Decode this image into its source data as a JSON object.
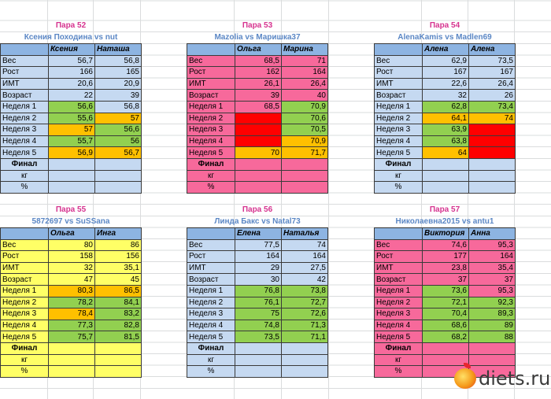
{
  "colors": {
    "blue": "#c5d9f1",
    "header": "#8db4e2",
    "green": "#92d050",
    "orange": "#ffc000",
    "red": "#ff0000",
    "pink": "#f7699b",
    "yellow": "#ffff66"
  },
  "row_labels": [
    "Вес",
    "Рост",
    "ИМТ",
    "Возраст",
    "Неделя 1",
    "Неделя 2",
    "Неделя 3",
    "Неделя 4",
    "Неделя 5",
    "Финал",
    "кг",
    "%"
  ],
  "pairs": [
    {
      "title": "Пара 52",
      "subtitle": "Ксения Походина vs nut",
      "theme": "blue",
      "names": [
        "Ксения",
        "Наташа"
      ],
      "a": [
        "56,7",
        "166",
        "20,6",
        "22",
        "56,6",
        "55,6",
        "57",
        "55,7",
        "56,9",
        "",
        "",
        ""
      ],
      "b": [
        "56,8",
        "165",
        "20,9",
        "39",
        "56,8",
        "57",
        "56,6",
        "56",
        "56,7",
        "",
        "",
        ""
      ],
      "ca": [
        "",
        "",
        "",
        "",
        "green",
        "green",
        "orange",
        "green",
        "orange",
        "",
        "",
        ""
      ],
      "cb": [
        "",
        "",
        "",
        "",
        "",
        "orange",
        "green",
        "green",
        "orange",
        "",
        "",
        ""
      ]
    },
    {
      "title": "Пара 53",
      "subtitle": "Mazolia vs Маришка37",
      "theme": "pink",
      "names": [
        "Ольга",
        "Марина"
      ],
      "a": [
        "68,5",
        "162",
        "26,1",
        "39",
        "68,5",
        "",
        "",
        "",
        "70",
        "",
        "",
        ""
      ],
      "b": [
        "71",
        "164",
        "26,4",
        "40",
        "70,9",
        "70,6",
        "70,5",
        "70,9",
        "71,7",
        "",
        "",
        ""
      ],
      "ca": [
        "",
        "",
        "",
        "",
        "",
        "red",
        "red",
        "red",
        "orange",
        "",
        "",
        ""
      ],
      "cb": [
        "",
        "",
        "",
        "",
        "green",
        "green",
        "green",
        "orange",
        "orange",
        "",
        "",
        ""
      ]
    },
    {
      "title": "Пара 54",
      "subtitle": "AlenaKamis vs Madlen69",
      "theme": "blue",
      "names": [
        "Алена",
        "Алена"
      ],
      "a": [
        "62,9",
        "167",
        "22,6",
        "32",
        "62,8",
        "64,1",
        "63,9",
        "63,8",
        "64",
        "",
        "",
        ""
      ],
      "b": [
        "73,5",
        "167",
        "26,4",
        "26",
        "73,4",
        "74",
        "",
        "",
        "",
        "",
        "",
        ""
      ],
      "ca": [
        "",
        "",
        "",
        "",
        "green",
        "orange",
        "green",
        "green",
        "orange",
        "",
        "",
        ""
      ],
      "cb": [
        "",
        "",
        "",
        "",
        "green",
        "orange",
        "red",
        "red",
        "red",
        "",
        "",
        ""
      ]
    },
    {
      "title": "Пара 55",
      "subtitle": "5872697 vs SuSSana",
      "theme": "yellow",
      "names": [
        "Ольга",
        "Инга"
      ],
      "a": [
        "80",
        "158",
        "32",
        "47",
        "80,3",
        "78,2",
        "78,4",
        "77,3",
        "75,7",
        "",
        "",
        ""
      ],
      "b": [
        "86",
        "156",
        "35,1",
        "45",
        "86,5",
        "84,1",
        "83,2",
        "82,8",
        "81,5",
        "",
        "",
        ""
      ],
      "ca": [
        "",
        "",
        "",
        "",
        "orange",
        "green",
        "orange",
        "green",
        "green",
        "",
        "",
        ""
      ],
      "cb": [
        "",
        "",
        "",
        "",
        "orange",
        "green",
        "green",
        "green",
        "green",
        "",
        "",
        ""
      ]
    },
    {
      "title": "Пара 56",
      "subtitle": "Линда Бакс vs Natal73",
      "theme": "blue",
      "names": [
        "Елена",
        "Наталья"
      ],
      "a": [
        "77,5",
        "164",
        "29",
        "30",
        "76,8",
        "76,1",
        "75",
        "74,8",
        "73,5",
        "",
        "",
        ""
      ],
      "b": [
        "74",
        "164",
        "27,5",
        "42",
        "73,8",
        "72,7",
        "72,6",
        "71,3",
        "71,1",
        "",
        "",
        ""
      ],
      "ca": [
        "",
        "",
        "",
        "",
        "green",
        "green",
        "green",
        "green",
        "green",
        "",
        "",
        ""
      ],
      "cb": [
        "",
        "",
        "",
        "",
        "green",
        "green",
        "green",
        "green",
        "green",
        "",
        "",
        ""
      ]
    },
    {
      "title": "Пара 57",
      "subtitle": "Николаевна2015 vs antu1",
      "theme": "pink",
      "names": [
        "Виктория",
        "Анна"
      ],
      "a": [
        "74,6",
        "177",
        "23,8",
        "37",
        "73,6",
        "72,1",
        "70,4",
        "68,6",
        "68,2",
        "",
        "",
        ""
      ],
      "b": [
        "95,3",
        "164",
        "35,4",
        "37",
        "95,3",
        "92,3",
        "89,3",
        "89",
        "88",
        "",
        "",
        ""
      ],
      "ca": [
        "",
        "",
        "",
        "",
        "green",
        "green",
        "green",
        "green",
        "green",
        "",
        "",
        ""
      ],
      "cb": [
        "",
        "",
        "",
        "",
        "",
        "green",
        "green",
        "green",
        "green",
        "",
        "",
        ""
      ]
    }
  ],
  "logo": {
    "text": "diets.ru"
  }
}
